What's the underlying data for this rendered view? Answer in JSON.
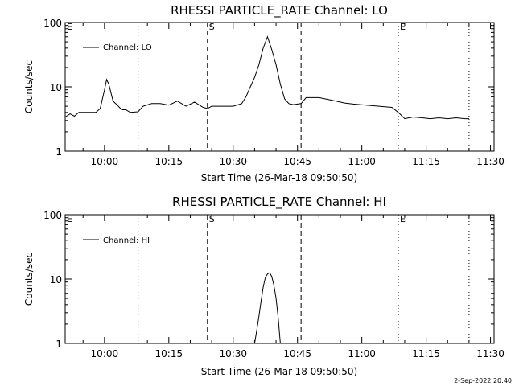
{
  "footer": "2-Sep-2022 20:40",
  "chart_data": [
    {
      "type": "line",
      "title": "RHESSI PARTICLE_RATE Channel: LO",
      "xlabel": "Start Time (26-Mar-18 09:50:50)",
      "ylabel": "Counts/sec",
      "y_scale": "log",
      "ylim": [
        1,
        100
      ],
      "y_ticks": [
        1,
        10,
        100
      ],
      "y_tick_labels": [
        "1",
        "10",
        "100"
      ],
      "xlim": [
        "09:50:50",
        "11:30:50"
      ],
      "x_ticks": [
        "10:00",
        "10:15",
        "10:30",
        "10:45",
        "11:00",
        "11:15",
        "11:30"
      ],
      "grid": false,
      "legend": {
        "placement": "top-left",
        "label": "Channel: LO"
      },
      "markers": [
        {
          "label": "E",
          "time": "09:50:50",
          "style": "none"
        },
        {
          "label": "",
          "time": "10:07:50",
          "style": "dotted"
        },
        {
          "label": "S",
          "time": "10:24:00",
          "style": "dashed"
        },
        {
          "label": "",
          "time": "10:45:50",
          "style": "dashed"
        },
        {
          "label": "E",
          "time": "11:08:30",
          "style": "dotted"
        },
        {
          "label": "",
          "time": "11:25:00",
          "style": "dotted"
        }
      ],
      "series": [
        {
          "name": "Channel: LO",
          "x": [
            "09:50:50",
            "09:52:00",
            "09:53:00",
            "09:54:00",
            "09:58:00",
            "09:59:00",
            "10:00:00",
            "10:00:30",
            "10:01:00",
            "10:02:00",
            "10:03:00",
            "10:04:00",
            "10:05:00",
            "10:06:00",
            "10:07:50",
            "10:09:00",
            "10:11:00",
            "10:13:00",
            "10:15:00",
            "10:17:00",
            "10:19:00",
            "10:21:00",
            "10:23:00",
            "10:24:00",
            "10:25:00",
            "10:28:00",
            "10:30:00",
            "10:32:00",
            "10:33:00",
            "10:34:00",
            "10:35:00",
            "10:36:00",
            "10:37:00",
            "10:38:00",
            "10:39:00",
            "10:40:00",
            "10:41:00",
            "10:42:00",
            "10:43:00",
            "10:44:00",
            "10:45:50",
            "10:47:00",
            "10:50:00",
            "10:53:00",
            "10:56:00",
            "10:58:00",
            "11:01:00",
            "11:04:00",
            "11:07:00",
            "11:08:30",
            "11:10:00",
            "11:12:00",
            "11:14:00",
            "11:16:00",
            "11:18:00",
            "11:20:00",
            "11:22:00",
            "11:24:00",
            "11:25:00"
          ],
          "values": [
            3.4,
            3.8,
            3.5,
            4.0,
            4.0,
            4.6,
            9.0,
            13.0,
            11.0,
            6.0,
            5.2,
            4.4,
            4.4,
            4.0,
            4.1,
            5.0,
            5.5,
            5.5,
            5.2,
            6.0,
            5.0,
            5.8,
            4.8,
            4.6,
            5.0,
            5.0,
            5.0,
            5.5,
            7.0,
            10.0,
            14.0,
            22.0,
            40.0,
            60.0,
            38.0,
            22.0,
            11.0,
            6.5,
            5.5,
            5.3,
            5.5,
            6.8,
            6.8,
            6.2,
            5.6,
            5.4,
            5.2,
            5.0,
            4.8,
            4.0,
            3.2,
            3.4,
            3.3,
            3.2,
            3.3,
            3.2,
            3.3,
            3.2,
            3.2
          ]
        }
      ]
    },
    {
      "type": "line",
      "title": "RHESSI PARTICLE_RATE Channel: HI",
      "xlabel": "Start Time (26-Mar-18 09:50:50)",
      "ylabel": "Counts/sec",
      "y_scale": "log",
      "ylim": [
        1,
        100
      ],
      "y_ticks": [
        1,
        10,
        100
      ],
      "y_tick_labels": [
        "1",
        "10",
        "100"
      ],
      "xlim": [
        "09:50:50",
        "11:30:50"
      ],
      "x_ticks": [
        "10:00",
        "10:15",
        "10:30",
        "10:45",
        "11:00",
        "11:15",
        "11:30"
      ],
      "grid": false,
      "legend": {
        "placement": "top-left",
        "label": "Channel: HI"
      },
      "markers": [
        {
          "label": "E",
          "time": "09:50:50",
          "style": "none"
        },
        {
          "label": "",
          "time": "10:07:50",
          "style": "dotted"
        },
        {
          "label": "S",
          "time": "10:24:00",
          "style": "dashed"
        },
        {
          "label": "",
          "time": "10:45:50",
          "style": "dashed"
        },
        {
          "label": "E",
          "time": "11:08:30",
          "style": "dotted"
        },
        {
          "label": "",
          "time": "11:25:00",
          "style": "dotted"
        }
      ],
      "series": [
        {
          "name": "Channel: HI",
          "x": [
            "10:35:00",
            "10:35:30",
            "10:36:00",
            "10:36:30",
            "10:37:00",
            "10:37:30",
            "10:38:00",
            "10:38:30",
            "10:39:00",
            "10:39:30",
            "10:40:00",
            "10:40:30",
            "10:41:00"
          ],
          "values": [
            1.0,
            1.6,
            2.6,
            4.5,
            7.5,
            10.5,
            12.0,
            12.5,
            11.0,
            8.0,
            5.0,
            2.5,
            1.0
          ]
        }
      ]
    }
  ]
}
